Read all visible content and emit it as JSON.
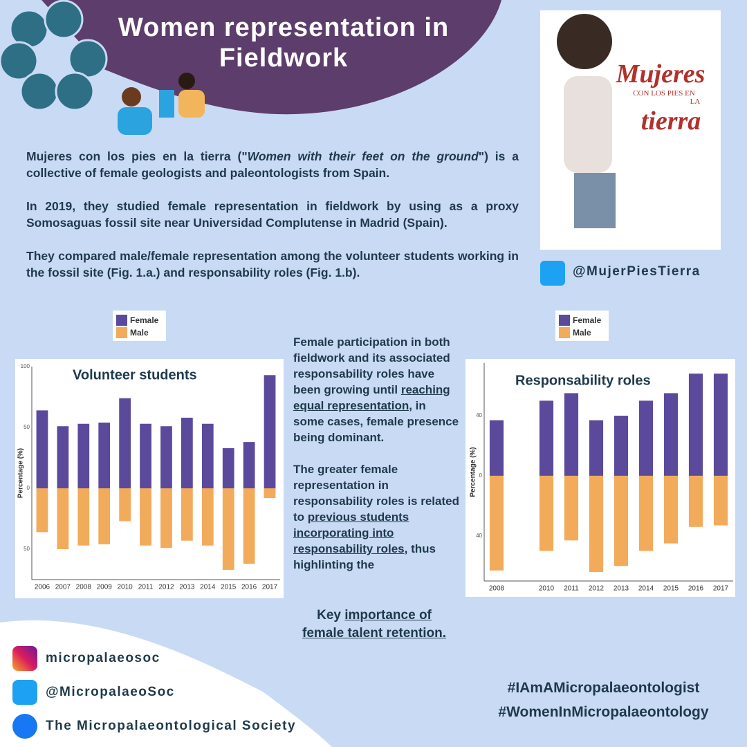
{
  "header": {
    "title": "Women representation in Fieldwork"
  },
  "intro": [
    [
      {
        "text": "Mujeres con los pies en la tierra (\""
      },
      {
        "text": "Women with their feet on the ground",
        "style": "italic"
      },
      {
        "text": "\") is a collective of female geologists and paleontologists from Spain."
      }
    ],
    [
      {
        "text": "In 2019, they studied female representation in fieldwork by using as a proxy Somosaguas fossil site near Universidad Complutense  in Madrid (Spain)."
      }
    ],
    [
      {
        "text": "They compared male/female representation among the volunteer students working in the fossil site (Fig. 1.a.) and responsability roles (Fig. 1.b)."
      }
    ]
  ],
  "profile": {
    "handle": "@MujerPiesTierra",
    "poster": [
      "Mujeres",
      "CON LOS PIES EN",
      "LA",
      "tierra"
    ]
  },
  "summary": [
    [
      {
        "text": "Female participation in both fieldwork and its associated responsability roles have been growing until "
      },
      {
        "text": "reaching  equal representation",
        "style": "underline"
      },
      {
        "text": ",  in some cases, female presence being dominant."
      }
    ],
    [
      {
        "text": "The greater female representation in responsability roles is related to "
      },
      {
        "text": "previous students incorporating into responsability roles",
        "style": "underline"
      },
      {
        "text": ", thus highlinting the"
      }
    ]
  ],
  "conclusion": [
    {
      "text": "Key "
    },
    {
      "text": "importance of female talent retention. ",
      "style": "underline"
    }
  ],
  "footer": {
    "socials": [
      "micropalaeosoc",
      "@MicropalaeoSoc",
      "The Micropalaeontological Society"
    ],
    "hashtags": [
      "#IAmAMicropalaeontologist",
      "#WomenInMicropalaeontology"
    ]
  },
  "chart_data": [
    {
      "type": "bar",
      "title": "Volunteer students",
      "y_label": "Percentage (%)",
      "categories": [
        "2006",
        "2007",
        "2008",
        "2009",
        "2010",
        "2011",
        "2012",
        "2013",
        "2014",
        "2015",
        "2016",
        "2017"
      ],
      "series": [
        {
          "name": "Female",
          "color": "#5b4a9b",
          "values": [
            64,
            51,
            53,
            54,
            74,
            53,
            51,
            58,
            53,
            33,
            38,
            93
          ]
        },
        {
          "name": "Male",
          "color": "#f2ab5b",
          "values": [
            -36,
            -50,
            -47,
            -46,
            -27,
            -47,
            -49,
            -43,
            -47,
            -67,
            -62,
            -8
          ]
        }
      ],
      "ylim": [
        -75,
        100
      ],
      "yticks": [
        {
          "value": -50,
          "label": "50"
        },
        0,
        50,
        100
      ],
      "grid": false,
      "legend": "top-left"
    },
    {
      "type": "bar",
      "title": "Responsability roles",
      "y_label": "Percentage (%)",
      "categories": [
        "2008",
        null,
        "2010",
        "2011",
        "2012",
        "2013",
        "2014",
        "2015",
        "2016",
        "2017"
      ],
      "series": [
        {
          "name": "Female",
          "color": "#5b4a9b",
          "values": [
            37,
            null,
            50,
            55,
            37,
            40,
            50,
            55,
            68,
            68
          ]
        },
        {
          "name": "Male",
          "color": "#f2ab5b",
          "values": [
            -63,
            null,
            -50,
            -43,
            -64,
            -60,
            -50,
            -45,
            -34,
            -33
          ]
        }
      ],
      "ylim": [
        -70,
        75
      ],
      "yticks": [
        {
          "value": -40,
          "label": "40"
        },
        0,
        40
      ],
      "grid": false,
      "legend": "top-left"
    }
  ]
}
